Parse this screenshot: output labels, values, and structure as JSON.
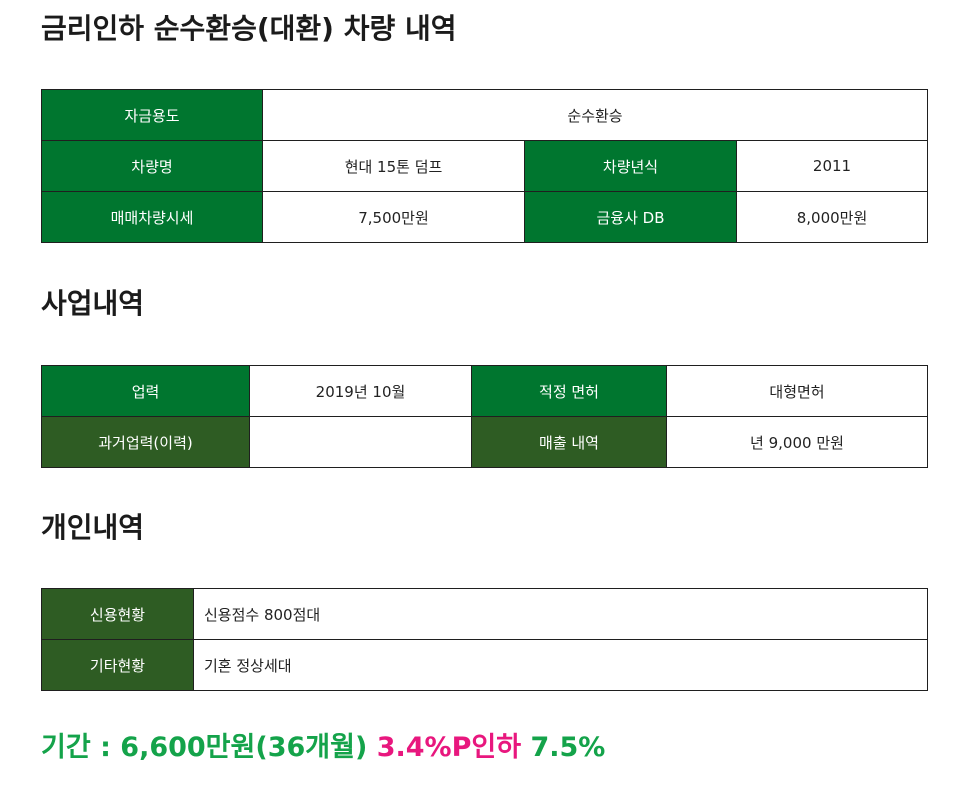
{
  "section1": {
    "title": "금리인하 순수환승(대환) 차량 내역",
    "rows": {
      "fund_use_label": "자금용도",
      "fund_use_value": "순수환승",
      "vehicle_name_label": "차량명",
      "vehicle_name_value": "현대 15톤 덤프",
      "vehicle_year_label": "차량년식",
      "vehicle_year_value": "2011",
      "trade_price_label": "매매차량시세",
      "trade_price_value": "7,500만원",
      "finance_db_label": "금융사 DB",
      "finance_db_value": "8,000만원"
    }
  },
  "section2": {
    "title": "사업내역",
    "rows": {
      "career_label": "업력",
      "career_value": "2019년 10월",
      "license_label": "적정 면허",
      "license_value": "대형면허",
      "past_career_label": "과거업력(이력)",
      "past_career_value": "",
      "sales_label": "매출 내역",
      "sales_value": "년 9,000 만원"
    }
  },
  "section3": {
    "title": "개인내역",
    "rows": {
      "credit_label": "신용현황",
      "credit_value": "신용점수 800점대",
      "other_label": "기타현황",
      "other_value": "기혼 정상세대"
    }
  },
  "summary": {
    "green_text": "기간 : 6,600만원(36개월)",
    "pink_text": "3.4%P인하",
    "rate_text": "7.5%"
  },
  "colors": {
    "header_green": "#00762f",
    "header_dark_green": "#2e5c23",
    "summary_green": "#14a34a",
    "summary_pink": "#e8177e"
  }
}
